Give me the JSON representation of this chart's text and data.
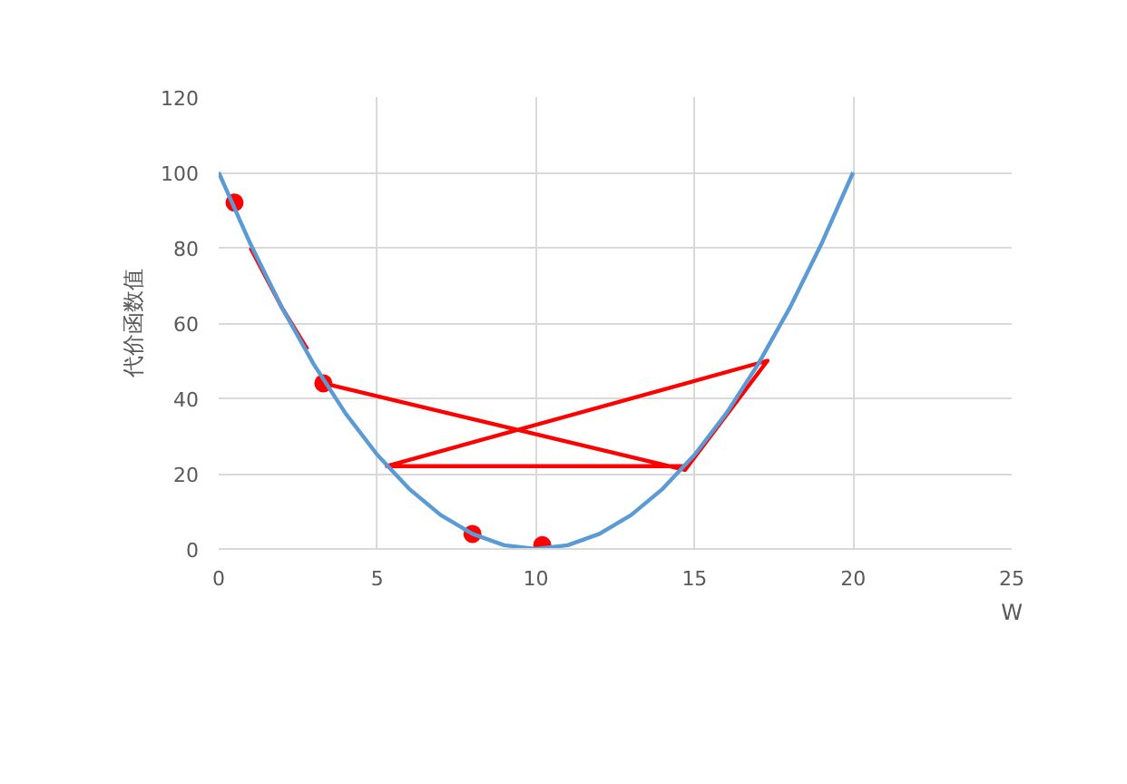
{
  "chart_data": {
    "type": "line",
    "ylabel": "代价函数值",
    "xlabel": "W",
    "xlim": [
      0,
      25
    ],
    "xticks": [
      0,
      5,
      10,
      15,
      20,
      25
    ],
    "ylim": [
      0,
      120
    ],
    "yticks": [
      0,
      20,
      40,
      60,
      80,
      100,
      120
    ],
    "grid": true,
    "line_style": "solid",
    "marker": "none",
    "series": [
      {
        "color": "#5b9bd5",
        "x": [
          0,
          1,
          2,
          3,
          4,
          5,
          6,
          7,
          8,
          9,
          10,
          11,
          12,
          13,
          14,
          15,
          16,
          17,
          18,
          19,
          20
        ],
        "values": [
          100,
          81,
          64,
          49,
          36,
          25,
          16,
          9,
          4,
          1,
          0,
          1,
          4,
          9,
          16,
          25,
          36,
          49,
          64,
          81,
          100
        ]
      },
      {
        "color": "#ff0000",
        "x": [
          3.3,
          14.7,
          17.3,
          5.3,
          14.7
        ],
        "values": [
          44,
          21,
          50,
          22,
          22
        ]
      },
      {
        "color": "#ff0000",
        "x": [
          1,
          1.5,
          2,
          2.8
        ],
        "values": [
          80,
          72,
          64,
          53
        ]
      },
      {
        "type": "scatter",
        "color": "#ff0000",
        "marker": "circle",
        "x": [
          0.5,
          3.3,
          8,
          10.2
        ],
        "values": [
          92,
          44,
          4,
          1
        ]
      }
    ]
  }
}
